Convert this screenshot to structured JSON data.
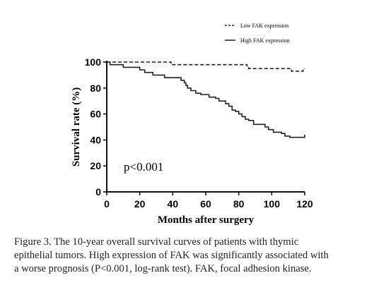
{
  "chart_data": {
    "type": "line",
    "xlabel": "Months after surgery",
    "ylabel": "Survival rate (%)",
    "xlim": [
      0,
      120
    ],
    "ylim": [
      0,
      100
    ],
    "xticks": [
      0,
      20,
      40,
      60,
      80,
      100,
      120
    ],
    "yticks": [
      0,
      20,
      40,
      60,
      80,
      100
    ],
    "legend_position": "top-right",
    "annotation": "p<0.001",
    "series": [
      {
        "name": "Low FAK expression",
        "style": "dashed",
        "step_points": [
          [
            0,
            100
          ],
          [
            39,
            98
          ],
          [
            85,
            97
          ],
          [
            86,
            95
          ],
          [
            112,
            93
          ],
          [
            119,
            95
          ],
          [
            120,
            95
          ]
        ]
      },
      {
        "name": "High FAK expression",
        "style": "solid",
        "step_points": [
          [
            0,
            100
          ],
          [
            2,
            98
          ],
          [
            10,
            96
          ],
          [
            20,
            94
          ],
          [
            23,
            92
          ],
          [
            28,
            90
          ],
          [
            35,
            88
          ],
          [
            45,
            86
          ],
          [
            47,
            84
          ],
          [
            48,
            82
          ],
          [
            49,
            80
          ],
          [
            51,
            78
          ],
          [
            54,
            76
          ],
          [
            57,
            75
          ],
          [
            62,
            73
          ],
          [
            66,
            72
          ],
          [
            68,
            70
          ],
          [
            72,
            68
          ],
          [
            74,
            66
          ],
          [
            76,
            63
          ],
          [
            78,
            62
          ],
          [
            80,
            60
          ],
          [
            82,
            58
          ],
          [
            84,
            56
          ],
          [
            86,
            55
          ],
          [
            89,
            52
          ],
          [
            96,
            50
          ],
          [
            98,
            48
          ],
          [
            101,
            46
          ],
          [
            106,
            45
          ],
          [
            108,
            43
          ],
          [
            111,
            42
          ],
          [
            120,
            44
          ]
        ]
      }
    ]
  },
  "caption": {
    "line1": "Figure 3. The 10-year overall survival curves of patients with thymic",
    "line2": "epithelial tumors. High expression of FAK was significantly associated with",
    "line3": "a worse prognosis (P<0.001, log-rank test). FAK, focal adhesion kinase."
  }
}
